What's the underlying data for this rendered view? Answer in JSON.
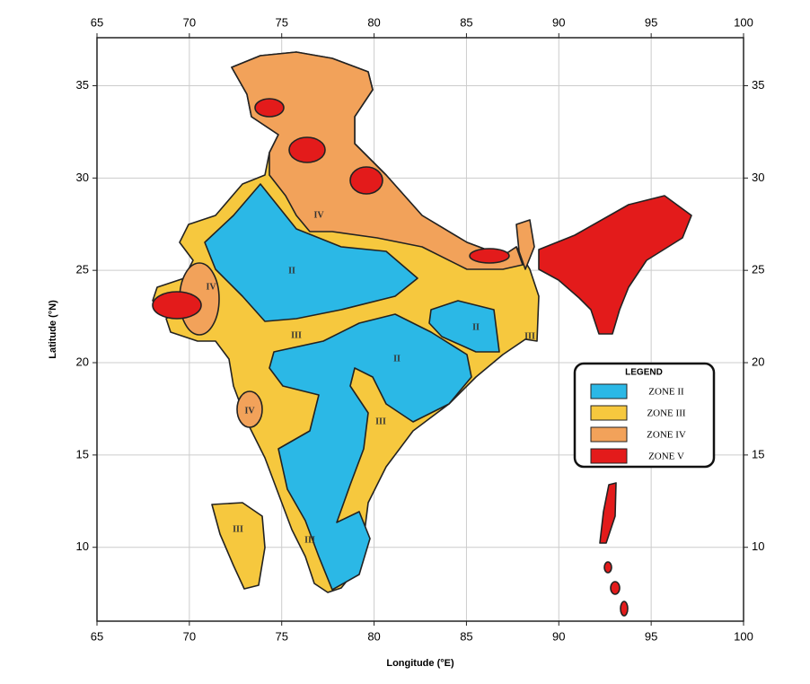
{
  "map": {
    "x_label": "Longitude (°E)",
    "y_label": "Latitude (°N)",
    "xlim": [
      65,
      100
    ],
    "ylim": [
      6,
      37.6
    ],
    "xticks": [
      65,
      70,
      75,
      80,
      85,
      90,
      95,
      100
    ],
    "yticks": [
      10,
      15,
      20,
      25,
      30,
      35
    ],
    "grid": true,
    "legend": {
      "title": "LEGEND",
      "items": [
        {
          "label": "ZONE II",
          "color": "#2bb8e6"
        },
        {
          "label": "ZONE III",
          "color": "#f6c83e"
        },
        {
          "label": "ZONE IV",
          "color": "#f2a25a"
        },
        {
          "label": "ZONE V",
          "color": "#e31b1b"
        }
      ]
    },
    "region_labels": [
      "II",
      "II",
      "II",
      "III",
      "III",
      "III",
      "III",
      "IV",
      "IV",
      "IV",
      "III"
    ]
  }
}
